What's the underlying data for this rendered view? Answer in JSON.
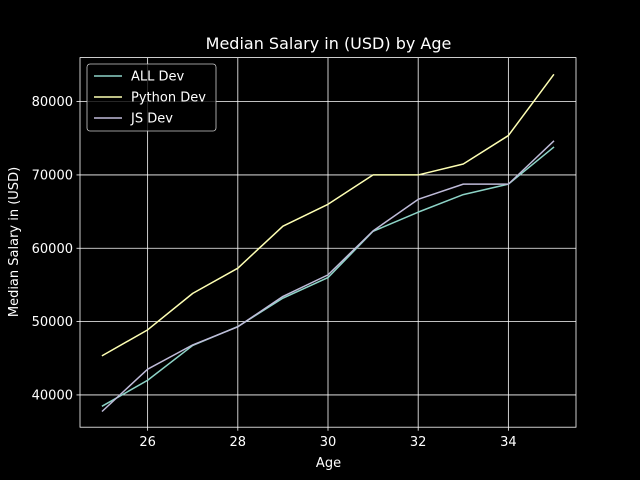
{
  "chart_data": {
    "type": "line",
    "title": "Median Salary in (USD) by Age",
    "xlabel": "Age",
    "ylabel": "Median Salary in (USD)",
    "x": [
      25,
      26,
      27,
      28,
      29,
      30,
      31,
      32,
      33,
      34,
      35
    ],
    "xlim": [
      24.5,
      35.5
    ],
    "ylim": [
      35600,
      86000
    ],
    "xticks": [
      26,
      28,
      30,
      32,
      34
    ],
    "yticks": [
      40000,
      50000,
      60000,
      70000,
      80000
    ],
    "grid": true,
    "legend_position": "upper-left",
    "background": "#000000",
    "foreground": "#ffffff",
    "series": [
      {
        "name": "ALL Dev",
        "color": "#8dd3c7",
        "values": [
          38496,
          42000,
          46752,
          49320,
          53200,
          56000,
          62316,
          64928,
          67317,
          68748,
          73752
        ]
      },
      {
        "name": "Python Dev",
        "color": "#feffb3",
        "values": [
          45372,
          48876,
          53850,
          57287,
          63016,
          65998,
          70003,
          70000,
          71496,
          75370,
          83640
        ]
      },
      {
        "name": "JS Dev",
        "color": "#bfbbd9",
        "values": [
          37810,
          43515,
          46823,
          49293,
          53437,
          56373,
          62375,
          66674,
          68745,
          68746,
          74583
        ]
      }
    ]
  }
}
